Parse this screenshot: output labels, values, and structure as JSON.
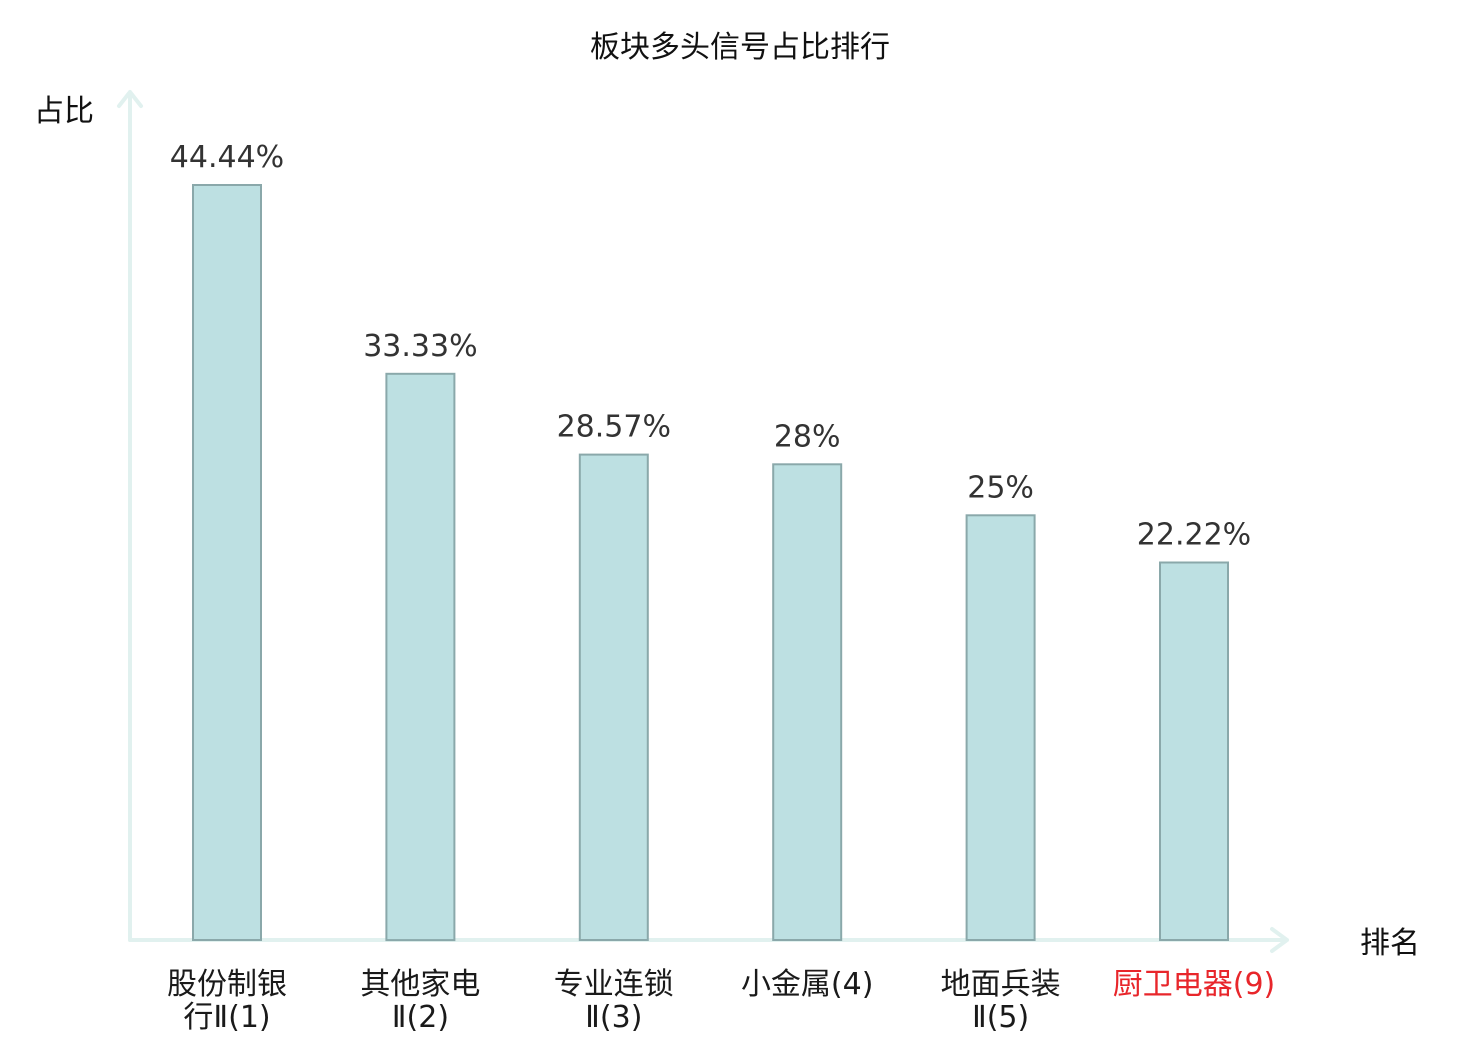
{
  "chart_data": {
    "type": "bar",
    "title": "板块多头信号占比排行",
    "ylabel": "占比",
    "xlabel": "排名",
    "categories": [
      [
        "股份制银",
        "行Ⅱ(1)"
      ],
      [
        "其他家电",
        "Ⅱ(2)"
      ],
      [
        "专业连锁",
        "Ⅱ(3)"
      ],
      [
        "小金属(4)"
      ],
      [
        "地面兵装",
        "Ⅱ(5)"
      ],
      [
        "厨卫电器(9)"
      ]
    ],
    "values": [
      44.44,
      33.33,
      28.57,
      28,
      25,
      22.22
    ],
    "value_labels": [
      "44.44%",
      "33.33%",
      "28.57%",
      "28%",
      "25%",
      "22.22%"
    ],
    "highlight": [
      false,
      false,
      false,
      false,
      false,
      true
    ],
    "ylim": [
      0,
      50
    ],
    "grid": false,
    "colors": {
      "bar_fill": "#bde0e2",
      "bar_stroke": "#8aa8aa",
      "axis": "#e1f1ef",
      "label": "#1a1a1a",
      "highlight_label": "#e8262b",
      "value_label": "#333333"
    }
  }
}
